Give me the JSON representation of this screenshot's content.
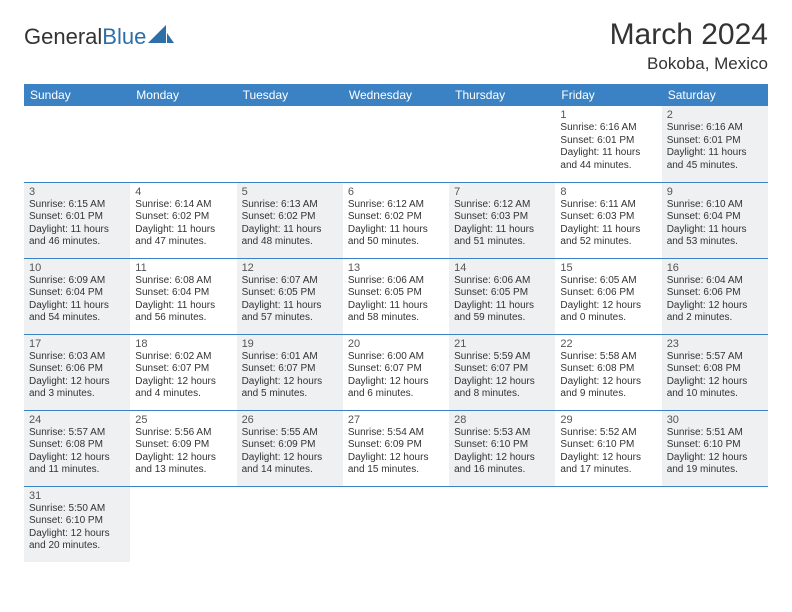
{
  "brand": {
    "part1": "General",
    "part2": "Blue"
  },
  "title": "March 2024",
  "location": "Bokoba, Mexico",
  "colors": {
    "header_bg": "#3b82c4",
    "header_fg": "#ffffff",
    "shade_bg": "#eef0f2",
    "border": "#3b82c4",
    "text": "#333333"
  },
  "day_headers": [
    "Sunday",
    "Monday",
    "Tuesday",
    "Wednesday",
    "Thursday",
    "Friday",
    "Saturday"
  ],
  "weeks": [
    [
      null,
      null,
      null,
      null,
      null,
      {
        "n": "1",
        "sr": "Sunrise: 6:16 AM",
        "ss": "Sunset: 6:01 PM",
        "dl1": "Daylight: 11 hours",
        "dl2": "and 44 minutes."
      },
      {
        "n": "2",
        "sr": "Sunrise: 6:16 AM",
        "ss": "Sunset: 6:01 PM",
        "dl1": "Daylight: 11 hours",
        "dl2": "and 45 minutes."
      }
    ],
    [
      {
        "n": "3",
        "sr": "Sunrise: 6:15 AM",
        "ss": "Sunset: 6:01 PM",
        "dl1": "Daylight: 11 hours",
        "dl2": "and 46 minutes."
      },
      {
        "n": "4",
        "sr": "Sunrise: 6:14 AM",
        "ss": "Sunset: 6:02 PM",
        "dl1": "Daylight: 11 hours",
        "dl2": "and 47 minutes."
      },
      {
        "n": "5",
        "sr": "Sunrise: 6:13 AM",
        "ss": "Sunset: 6:02 PM",
        "dl1": "Daylight: 11 hours",
        "dl2": "and 48 minutes."
      },
      {
        "n": "6",
        "sr": "Sunrise: 6:12 AM",
        "ss": "Sunset: 6:02 PM",
        "dl1": "Daylight: 11 hours",
        "dl2": "and 50 minutes."
      },
      {
        "n": "7",
        "sr": "Sunrise: 6:12 AM",
        "ss": "Sunset: 6:03 PM",
        "dl1": "Daylight: 11 hours",
        "dl2": "and 51 minutes."
      },
      {
        "n": "8",
        "sr": "Sunrise: 6:11 AM",
        "ss": "Sunset: 6:03 PM",
        "dl1": "Daylight: 11 hours",
        "dl2": "and 52 minutes."
      },
      {
        "n": "9",
        "sr": "Sunrise: 6:10 AM",
        "ss": "Sunset: 6:04 PM",
        "dl1": "Daylight: 11 hours",
        "dl2": "and 53 minutes."
      }
    ],
    [
      {
        "n": "10",
        "sr": "Sunrise: 6:09 AM",
        "ss": "Sunset: 6:04 PM",
        "dl1": "Daylight: 11 hours",
        "dl2": "and 54 minutes."
      },
      {
        "n": "11",
        "sr": "Sunrise: 6:08 AM",
        "ss": "Sunset: 6:04 PM",
        "dl1": "Daylight: 11 hours",
        "dl2": "and 56 minutes."
      },
      {
        "n": "12",
        "sr": "Sunrise: 6:07 AM",
        "ss": "Sunset: 6:05 PM",
        "dl1": "Daylight: 11 hours",
        "dl2": "and 57 minutes."
      },
      {
        "n": "13",
        "sr": "Sunrise: 6:06 AM",
        "ss": "Sunset: 6:05 PM",
        "dl1": "Daylight: 11 hours",
        "dl2": "and 58 minutes."
      },
      {
        "n": "14",
        "sr": "Sunrise: 6:06 AM",
        "ss": "Sunset: 6:05 PM",
        "dl1": "Daylight: 11 hours",
        "dl2": "and 59 minutes."
      },
      {
        "n": "15",
        "sr": "Sunrise: 6:05 AM",
        "ss": "Sunset: 6:06 PM",
        "dl1": "Daylight: 12 hours",
        "dl2": "and 0 minutes."
      },
      {
        "n": "16",
        "sr": "Sunrise: 6:04 AM",
        "ss": "Sunset: 6:06 PM",
        "dl1": "Daylight: 12 hours",
        "dl2": "and 2 minutes."
      }
    ],
    [
      {
        "n": "17",
        "sr": "Sunrise: 6:03 AM",
        "ss": "Sunset: 6:06 PM",
        "dl1": "Daylight: 12 hours",
        "dl2": "and 3 minutes."
      },
      {
        "n": "18",
        "sr": "Sunrise: 6:02 AM",
        "ss": "Sunset: 6:07 PM",
        "dl1": "Daylight: 12 hours",
        "dl2": "and 4 minutes."
      },
      {
        "n": "19",
        "sr": "Sunrise: 6:01 AM",
        "ss": "Sunset: 6:07 PM",
        "dl1": "Daylight: 12 hours",
        "dl2": "and 5 minutes."
      },
      {
        "n": "20",
        "sr": "Sunrise: 6:00 AM",
        "ss": "Sunset: 6:07 PM",
        "dl1": "Daylight: 12 hours",
        "dl2": "and 6 minutes."
      },
      {
        "n": "21",
        "sr": "Sunrise: 5:59 AM",
        "ss": "Sunset: 6:07 PM",
        "dl1": "Daylight: 12 hours",
        "dl2": "and 8 minutes."
      },
      {
        "n": "22",
        "sr": "Sunrise: 5:58 AM",
        "ss": "Sunset: 6:08 PM",
        "dl1": "Daylight: 12 hours",
        "dl2": "and 9 minutes."
      },
      {
        "n": "23",
        "sr": "Sunrise: 5:57 AM",
        "ss": "Sunset: 6:08 PM",
        "dl1": "Daylight: 12 hours",
        "dl2": "and 10 minutes."
      }
    ],
    [
      {
        "n": "24",
        "sr": "Sunrise: 5:57 AM",
        "ss": "Sunset: 6:08 PM",
        "dl1": "Daylight: 12 hours",
        "dl2": "and 11 minutes."
      },
      {
        "n": "25",
        "sr": "Sunrise: 5:56 AM",
        "ss": "Sunset: 6:09 PM",
        "dl1": "Daylight: 12 hours",
        "dl2": "and 13 minutes."
      },
      {
        "n": "26",
        "sr": "Sunrise: 5:55 AM",
        "ss": "Sunset: 6:09 PM",
        "dl1": "Daylight: 12 hours",
        "dl2": "and 14 minutes."
      },
      {
        "n": "27",
        "sr": "Sunrise: 5:54 AM",
        "ss": "Sunset: 6:09 PM",
        "dl1": "Daylight: 12 hours",
        "dl2": "and 15 minutes."
      },
      {
        "n": "28",
        "sr": "Sunrise: 5:53 AM",
        "ss": "Sunset: 6:10 PM",
        "dl1": "Daylight: 12 hours",
        "dl2": "and 16 minutes."
      },
      {
        "n": "29",
        "sr": "Sunrise: 5:52 AM",
        "ss": "Sunset: 6:10 PM",
        "dl1": "Daylight: 12 hours",
        "dl2": "and 17 minutes."
      },
      {
        "n": "30",
        "sr": "Sunrise: 5:51 AM",
        "ss": "Sunset: 6:10 PM",
        "dl1": "Daylight: 12 hours",
        "dl2": "and 19 minutes."
      }
    ],
    [
      {
        "n": "31",
        "sr": "Sunrise: 5:50 AM",
        "ss": "Sunset: 6:10 PM",
        "dl1": "Daylight: 12 hours",
        "dl2": "and 20 minutes."
      },
      null,
      null,
      null,
      null,
      null,
      null
    ]
  ]
}
